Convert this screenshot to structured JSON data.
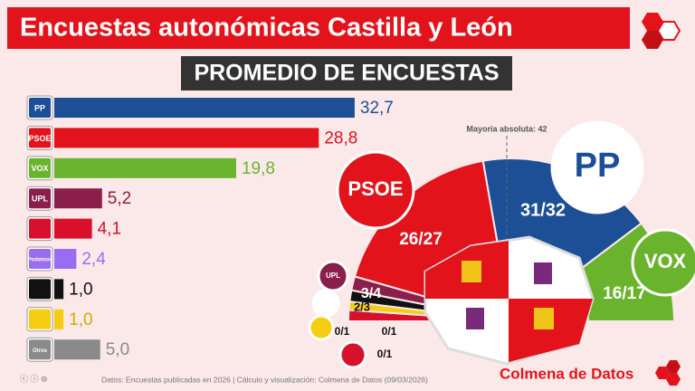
{
  "chart_data": {
    "type": "bar",
    "title": "Encuestas autonómicas Castilla y León",
    "subtitle": "PROMEDIO DE ENCUESTAS",
    "categories": [
      "PP",
      "PSOE",
      "VOX",
      "UPL",
      null,
      "Podemos",
      null,
      null,
      "Otros"
    ],
    "values": [
      32.7,
      28.8,
      19.8,
      5.2,
      4.1,
      2.4,
      1.0,
      1.0,
      5.0
    ],
    "value_labels": [
      "32,7",
      "28,8",
      "19,8",
      "5,2",
      "4,1",
      "2,4",
      "1,0",
      "1,0",
      "5,0"
    ],
    "colors": [
      "#1d4f96",
      "#e2131b",
      "#6ab42d",
      "#8a1f4b",
      "#d8102c",
      "#9a6cf2",
      "#111111",
      "#f5cd12",
      "#8a8a8a"
    ],
    "seat_labels": [
      "31/32",
      "26/27",
      "16/17",
      "3/4",
      "0/1",
      "0/1",
      "2/3",
      "0/1"
    ],
    "majority_label": "Mayoría absoluta: 42",
    "source": "Datos: Encuestas publicadas en 2026 | Cálculo y visualización: Colmena de Datos (09/03/2026)",
    "brand": "Colmena de Datos"
  }
}
